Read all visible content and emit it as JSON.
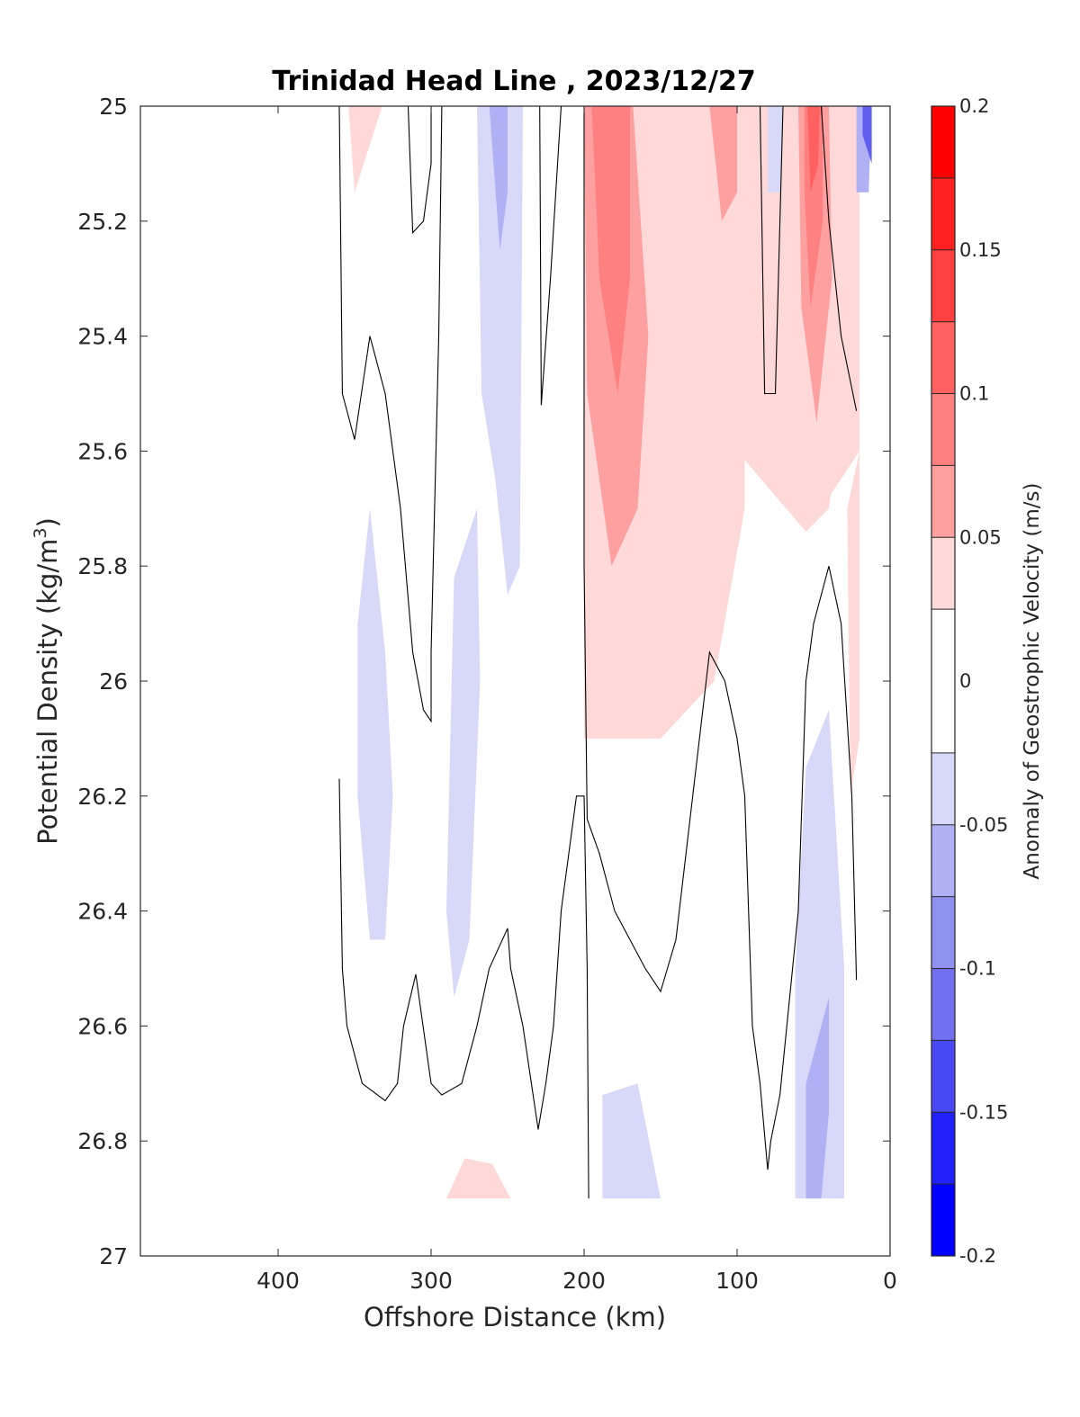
{
  "chart_data": {
    "type": "contour",
    "title": "Trinidad Head Line , 2023/12/27",
    "xlabel": "Offshore Distance (km)",
    "ylabel": "Potential Density (kg/m",
    "ylabel_sup": "3",
    "ylabel_close": ")",
    "xlim": [
      490,
      0
    ],
    "ylim": [
      25,
      27
    ],
    "x_reversed": true,
    "y_reversed": true,
    "xticks": [
      400,
      300,
      200,
      100,
      0
    ],
    "xtick_labels": [
      "400",
      "300",
      "200",
      "100",
      "0"
    ],
    "yticks": [
      25,
      25.2,
      25.4,
      25.6,
      25.8,
      26,
      26.2,
      26.4,
      26.6,
      26.8,
      27
    ],
    "ytick_labels": [
      "25",
      "25.2",
      "25.4",
      "25.6",
      "25.8",
      "26",
      "26.2",
      "26.4",
      "26.6",
      "26.8",
      "27"
    ],
    "colorbar": {
      "label": "Anomaly of Geostrophic Velocity (m/s)",
      "range": [
        -0.2,
        0.2
      ],
      "ticks": [
        0.2,
        0.15,
        0.1,
        0.05,
        0,
        -0.05,
        -0.1,
        -0.15,
        -0.2
      ],
      "tick_labels": [
        "0.2",
        "0.15",
        "0.1",
        "0.05",
        "0",
        "-0.05",
        "-0.1",
        "-0.15",
        "-0.2"
      ],
      "levels": [
        {
          "lo": 0.175,
          "hi": 0.2,
          "color": "#ff0000"
        },
        {
          "lo": 0.15,
          "hi": 0.175,
          "color": "#ff2020"
        },
        {
          "lo": 0.125,
          "hi": 0.15,
          "color": "#ff4040"
        },
        {
          "lo": 0.1,
          "hi": 0.125,
          "color": "#ff6060"
        },
        {
          "lo": 0.075,
          "hi": 0.1,
          "color": "#ff8080"
        },
        {
          "lo": 0.05,
          "hi": 0.075,
          "color": "#ffa0a0"
        },
        {
          "lo": 0.025,
          "hi": 0.05,
          "color": "#ffd8d8"
        },
        {
          "lo": -0.025,
          "hi": 0.025,
          "color": "#ffffff"
        },
        {
          "lo": -0.05,
          "hi": -0.025,
          "color": "#d8d8f8"
        },
        {
          "lo": -0.075,
          "hi": -0.05,
          "color": "#b0b0f4"
        },
        {
          "lo": -0.1,
          "hi": -0.075,
          "color": "#9090f0"
        },
        {
          "lo": -0.125,
          "hi": -0.1,
          "color": "#7070f0"
        },
        {
          "lo": -0.15,
          "hi": -0.125,
          "color": "#4848f4"
        },
        {
          "lo": -0.175,
          "hi": -0.15,
          "color": "#2020f8"
        },
        {
          "lo": -0.2,
          "hi": -0.175,
          "color": "#0000ff"
        }
      ]
    },
    "regions": [
      {
        "value": 0.04,
        "color": "#ffd8d8",
        "pts": [
          [
            170,
            25.0
          ],
          [
            20,
            25.0
          ],
          [
            20,
            25.6
          ],
          [
            55,
            25.74
          ],
          [
            100,
            25.6
          ],
          [
            150,
            25.55
          ],
          [
            180,
            25.35
          ],
          [
            200,
            25.0
          ]
        ]
      },
      {
        "value": 0.04,
        "color": "#ffd8d8",
        "pts": [
          [
            200,
            25.0
          ],
          [
            110,
            25.0
          ],
          [
            95,
            25.2
          ],
          [
            95,
            25.7
          ],
          [
            115,
            26.0
          ],
          [
            150,
            26.1
          ],
          [
            200,
            26.1
          ]
        ]
      },
      {
        "value": 0.065,
        "color": "#ffa0a0",
        "pts": [
          [
            200,
            25.0
          ],
          [
            168,
            25.0
          ],
          [
            158,
            25.4
          ],
          [
            165,
            25.7
          ],
          [
            182,
            25.8
          ],
          [
            198,
            25.5
          ]
        ]
      },
      {
        "value": 0.09,
        "color": "#ff8080",
        "pts": [
          [
            195,
            25.0
          ],
          [
            170,
            25.0
          ],
          [
            170,
            25.3
          ],
          [
            178,
            25.5
          ],
          [
            190,
            25.3
          ]
        ]
      },
      {
        "value": 0.065,
        "color": "#ffa0a0",
        "pts": [
          [
            118,
            25.0
          ],
          [
            100,
            25.0
          ],
          [
            100,
            25.15
          ],
          [
            110,
            25.2
          ]
        ]
      },
      {
        "value": 0.04,
        "color": "#ffd8d8",
        "pts": [
          [
            62,
            25.0
          ],
          [
            35,
            25.0
          ],
          [
            30,
            25.5
          ],
          [
            40,
            25.7
          ],
          [
            55,
            25.74
          ],
          [
            63,
            25.6
          ]
        ]
      },
      {
        "value": 0.065,
        "color": "#ffa0a0",
        "pts": [
          [
            60,
            25.0
          ],
          [
            40,
            25.0
          ],
          [
            38,
            25.3
          ],
          [
            48,
            25.55
          ],
          [
            58,
            25.35
          ]
        ]
      },
      {
        "value": 0.09,
        "color": "#ff8080",
        "pts": [
          [
            56,
            25.0
          ],
          [
            44,
            25.0
          ],
          [
            44,
            25.2
          ],
          [
            52,
            25.35
          ],
          [
            56,
            25.15
          ]
        ]
      },
      {
        "value": 0.12,
        "color": "#ff6060",
        "pts": [
          [
            54,
            25.0
          ],
          [
            46,
            25.0
          ],
          [
            47,
            25.1
          ],
          [
            52,
            25.15
          ]
        ]
      },
      {
        "value": 0.04,
        "color": "#ffd8d8",
        "pts": [
          [
            354,
            25.0
          ],
          [
            332,
            25.0
          ],
          [
            350,
            25.15
          ]
        ]
      },
      {
        "value": 0.04,
        "color": "#ffd8d8",
        "pts": [
          [
            20,
            25.6
          ],
          [
            28,
            25.7
          ],
          [
            26,
            26.2
          ],
          [
            20,
            26.1
          ]
        ]
      },
      {
        "value": 0.04,
        "color": "#ffd8d8",
        "pts": [
          [
            290,
            26.9
          ],
          [
            278,
            26.83
          ],
          [
            260,
            26.84
          ],
          [
            248,
            26.9
          ]
        ]
      },
      {
        "value": -0.04,
        "color": "#d8d8f8",
        "pts": [
          [
            270,
            25.0
          ],
          [
            240,
            25.0
          ],
          [
            242,
            25.8
          ],
          [
            250,
            25.85
          ],
          [
            258,
            25.65
          ],
          [
            267,
            25.5
          ]
        ]
      },
      {
        "value": -0.065,
        "color": "#b0b0f4",
        "pts": [
          [
            262,
            25.0
          ],
          [
            250,
            25.0
          ],
          [
            250,
            25.15
          ],
          [
            255,
            25.25
          ]
        ]
      },
      {
        "value": -0.04,
        "color": "#d8d8f8",
        "pts": [
          [
            340,
            25.7
          ],
          [
            330,
            25.95
          ],
          [
            325,
            26.2
          ],
          [
            330,
            26.45
          ],
          [
            340,
            26.45
          ],
          [
            348,
            26.2
          ],
          [
            348,
            25.9
          ]
        ]
      },
      {
        "value": -0.04,
        "color": "#d8d8f8",
        "pts": [
          [
            270,
            25.7
          ],
          [
            285,
            25.82
          ],
          [
            290,
            26.4
          ],
          [
            285,
            26.55
          ],
          [
            275,
            26.45
          ],
          [
            268,
            26.0
          ]
        ]
      },
      {
        "value": -0.04,
        "color": "#d8d8f8",
        "pts": [
          [
            80,
            25.0
          ],
          [
            70,
            25.0
          ],
          [
            72,
            25.15
          ],
          [
            80,
            25.15
          ]
        ]
      },
      {
        "value": -0.04,
        "color": "#d8d8f8",
        "pts": [
          [
            40,
            26.05
          ],
          [
            55,
            26.15
          ],
          [
            62,
            26.5
          ],
          [
            62,
            26.9
          ],
          [
            30,
            26.9
          ],
          [
            30,
            26.5
          ]
        ]
      },
      {
        "value": -0.065,
        "color": "#b0b0f4",
        "pts": [
          [
            40,
            26.55
          ],
          [
            55,
            26.7
          ],
          [
            55,
            26.9
          ],
          [
            45,
            26.9
          ],
          [
            40,
            26.75
          ]
        ]
      },
      {
        "value": -0.04,
        "color": "#d8d8f8",
        "pts": [
          [
            188,
            26.72
          ],
          [
            165,
            26.7
          ],
          [
            150,
            26.9
          ],
          [
            188,
            26.9
          ]
        ]
      },
      {
        "value": -0.065,
        "color": "#b0b0f4",
        "pts": [
          [
            12,
            25.0
          ],
          [
            22,
            25.0
          ],
          [
            22,
            25.15
          ],
          [
            14,
            25.15
          ]
        ]
      },
      {
        "value": -0.12,
        "color": "#6060f0",
        "pts": [
          [
            12,
            25.0
          ],
          [
            18,
            25.0
          ],
          [
            18,
            25.05
          ],
          [
            12,
            25.1
          ]
        ]
      }
    ],
    "contours_zero": [
      [
        [
          360,
          25.0
        ],
        [
          358,
          25.5
        ],
        [
          350,
          25.58
        ],
        [
          340,
          25.4
        ],
        [
          330,
          25.5
        ],
        [
          320,
          25.7
        ],
        [
          312,
          25.95
        ],
        [
          305,
          26.05
        ],
        [
          300,
          26.07
        ],
        [
          300,
          25.95
        ],
        [
          295,
          25.4
        ],
        [
          293,
          25.0
        ]
      ],
      [
        [
          315,
          25.0
        ],
        [
          312,
          25.22
        ],
        [
          305,
          25.2
        ],
        [
          300,
          25.1
        ],
        [
          300,
          25.0
        ]
      ],
      [
        [
          229,
          25.0
        ],
        [
          228,
          25.52
        ],
        [
          222,
          25.3
        ],
        [
          215,
          25.0
        ]
      ],
      [
        [
          200,
          25.0
        ],
        [
          200,
          25.8
        ],
        [
          198,
          26.24
        ],
        [
          190,
          26.3
        ],
        [
          180,
          26.4
        ],
        [
          160,
          26.5
        ],
        [
          150,
          26.54
        ],
        [
          140,
          26.45
        ],
        [
          118,
          25.95
        ],
        [
          108,
          26.0
        ],
        [
          100,
          26.1
        ],
        [
          95,
          26.2
        ],
        [
          90,
          26.6
        ],
        [
          85,
          26.7
        ],
        [
          80,
          26.85
        ],
        [
          78,
          26.8
        ],
        [
          72,
          26.72
        ],
        [
          60,
          26.4
        ],
        [
          55,
          26.0
        ],
        [
          50,
          25.9
        ],
        [
          40,
          25.8
        ],
        [
          32,
          25.9
        ],
        [
          25,
          26.2
        ],
        [
          22,
          26.52
        ]
      ],
      [
        [
          360,
          26.17
        ],
        [
          358,
          26.5
        ],
        [
          355,
          26.6
        ],
        [
          345,
          26.7
        ],
        [
          330,
          26.73
        ],
        [
          322,
          26.7
        ],
        [
          318,
          26.6
        ],
        [
          310,
          26.51
        ],
        [
          300,
          26.7
        ],
        [
          293,
          26.72
        ],
        [
          280,
          26.7
        ],
        [
          270,
          26.6
        ],
        [
          262,
          26.5
        ],
        [
          250,
          26.43
        ],
        [
          248,
          26.5
        ],
        [
          240,
          26.6
        ],
        [
          230,
          26.78
        ],
        [
          225,
          26.7
        ],
        [
          220,
          26.6
        ],
        [
          215,
          26.4
        ],
        [
          205,
          26.2
        ],
        [
          200,
          26.2
        ],
        [
          198,
          26.5
        ],
        [
          197,
          26.9
        ]
      ],
      [
        [
          85,
          25.0
        ],
        [
          82,
          25.5
        ],
        [
          75,
          25.5
        ],
        [
          70,
          25.0
        ]
      ],
      [
        [
          45,
          25.0
        ],
        [
          40,
          25.2
        ],
        [
          32,
          25.4
        ],
        [
          22,
          25.53
        ]
      ]
    ]
  }
}
